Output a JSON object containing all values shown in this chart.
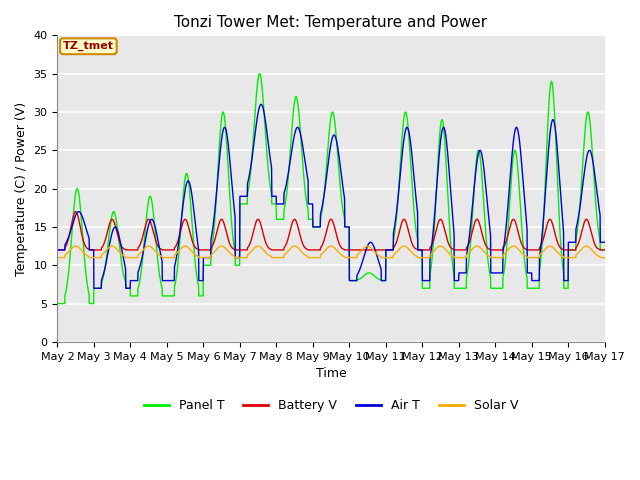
{
  "title": "Tonzi Tower Met: Temperature and Power",
  "xlabel": "Time",
  "ylabel": "Temperature (C) / Power (V)",
  "ylim": [
    0,
    40
  ],
  "yticks": [
    0,
    5,
    10,
    15,
    20,
    25,
    30,
    35,
    40
  ],
  "x_labels": [
    "May 2",
    "May 3",
    "May 4",
    "May 5",
    "May 6",
    "May 7",
    "May 8",
    "May 9",
    "May 10",
    "May 11",
    "May 12",
    "May 13",
    "May 14",
    "May 15",
    "May 16",
    "May 17"
  ],
  "annotation_text": "TZ_tmet",
  "annotation_bg": "#ffffcc",
  "annotation_border": "#cc8800",
  "colors": {
    "panel_t": "#00ee00",
    "battery_v": "#dd0000",
    "air_t": "#0000dd",
    "solar_v": "#ffaa00"
  },
  "legend_labels": [
    "Panel T",
    "Battery V",
    "Air T",
    "Solar V"
  ],
  "plot_bg": "#e8e8e8",
  "fig_bg": "#ffffff",
  "grid_color": "#ffffff",
  "title_fontsize": 11,
  "label_fontsize": 9,
  "tick_fontsize": 8
}
